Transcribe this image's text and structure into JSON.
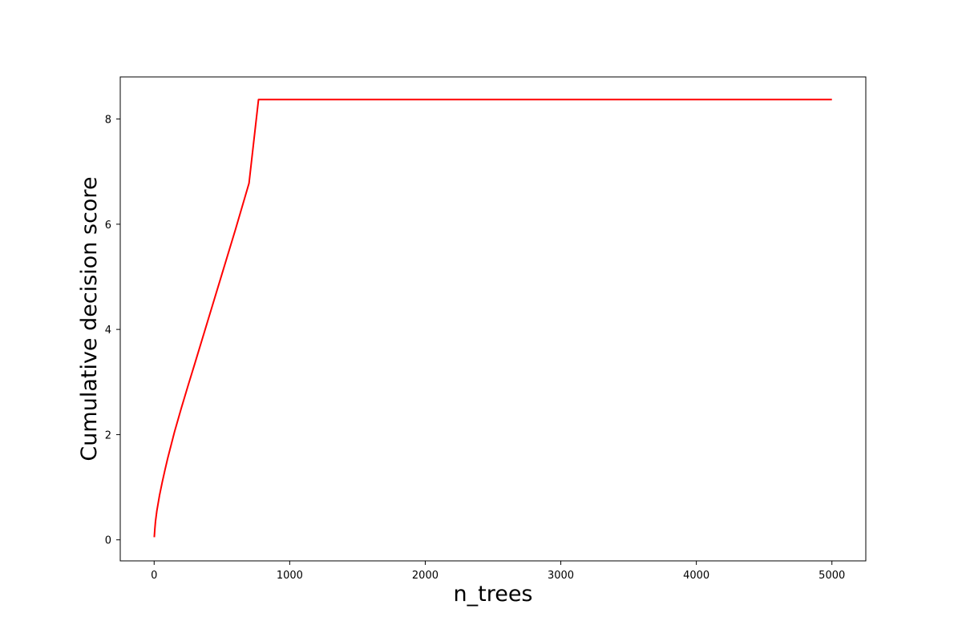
{
  "chart_data": {
    "type": "line",
    "title": "",
    "xlabel": "n_trees",
    "ylabel": "Cumulative decision score",
    "xlim": [
      -250,
      5250
    ],
    "ylim": [
      -0.4,
      8.8
    ],
    "x_ticks": [
      0,
      1000,
      2000,
      3000,
      4000,
      5000
    ],
    "y_ticks": [
      0,
      2,
      4,
      6,
      8
    ],
    "grid": false,
    "legend": "none",
    "series": [
      {
        "color": "#ff0000",
        "x": [
          1,
          5,
          10,
          20,
          40,
          60,
          80,
          100,
          150,
          200,
          250,
          300,
          400,
          500,
          600,
          700,
          770,
          1000,
          2000,
          3000,
          4000,
          5000
        ],
        "y": [
          0.05,
          0.2,
          0.35,
          0.55,
          0.85,
          1.1,
          1.33,
          1.55,
          2.05,
          2.5,
          2.93,
          3.35,
          4.2,
          5.05,
          5.9,
          6.78,
          8.37,
          8.37,
          8.37,
          8.37,
          8.37,
          8.37
        ]
      }
    ]
  }
}
